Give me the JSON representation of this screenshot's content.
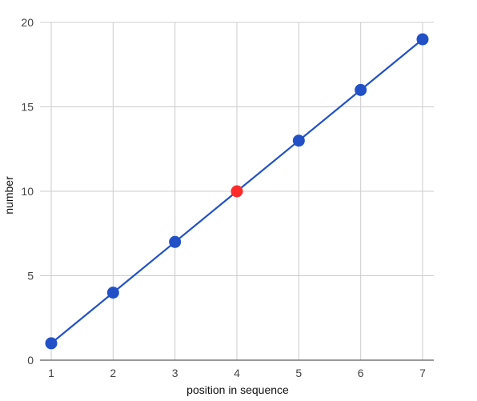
{
  "chart_data": {
    "type": "scatter",
    "x": [
      1,
      2,
      3,
      4,
      5,
      6,
      7
    ],
    "y": [
      1,
      4,
      7,
      10,
      13,
      16,
      19
    ],
    "xlabel": "position in sequence",
    "ylabel": "number",
    "xlim": [
      1,
      7
    ],
    "ylim": [
      0,
      20
    ],
    "x_ticks": [
      "1",
      "2",
      "3",
      "4",
      "5",
      "6",
      "7"
    ],
    "y_ticks": [
      "0",
      "5",
      "10",
      "15",
      "20"
    ],
    "grid": true,
    "trend_line": true,
    "highlighted_x": 4,
    "colors": {
      "points": "#2251c7",
      "line": "#2251c7",
      "highlight": "#ff2b2b",
      "grid": "#cccccc"
    }
  }
}
